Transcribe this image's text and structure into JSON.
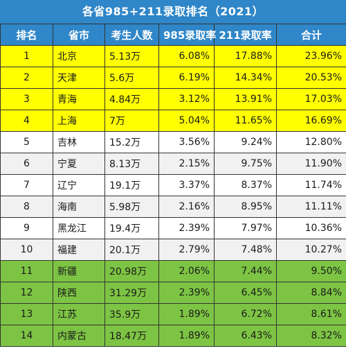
{
  "title": "各省985+211录取排名（2021）",
  "columns": [
    "排名",
    "省市",
    "考生人数",
    "985录取率",
    "211录取率",
    "合计"
  ],
  "rows": [
    {
      "rank": "1",
      "province": "北京",
      "count": "5.13万",
      "r985": "6.08%",
      "r211": "17.88%",
      "total": "23.96%",
      "tier": "yellow"
    },
    {
      "rank": "2",
      "province": "天津",
      "count": "5.6万",
      "r985": "6.19%",
      "r211": "14.34%",
      "total": "20.53%",
      "tier": "yellow"
    },
    {
      "rank": "3",
      "province": "青海",
      "count": "4.84万",
      "r985": "3.12%",
      "r211": "13.91%",
      "total": "17.03%",
      "tier": "yellow"
    },
    {
      "rank": "4",
      "province": "上海",
      "count": "7万",
      "r985": "5.04%",
      "r211": "11.65%",
      "total": "16.69%",
      "tier": "yellow"
    },
    {
      "rank": "5",
      "province": "吉林",
      "count": "15.2万",
      "r985": "3.56%",
      "r211": "9.24%",
      "total": "12.80%",
      "tier": "white"
    },
    {
      "rank": "6",
      "province": "宁夏",
      "count": "8.13万",
      "r985": "2.15%",
      "r211": "9.75%",
      "total": "11.90%",
      "tier": "white"
    },
    {
      "rank": "7",
      "province": "辽宁",
      "count": "19.1万",
      "r985": "3.37%",
      "r211": "8.37%",
      "total": "11.74%",
      "tier": "white"
    },
    {
      "rank": "8",
      "province": "海南",
      "count": "5.98万",
      "r985": "2.16%",
      "r211": "8.95%",
      "total": "11.11%",
      "tier": "white"
    },
    {
      "rank": "9",
      "province": "黑龙江",
      "count": "19.4万",
      "r985": "2.39%",
      "r211": "7.97%",
      "total": "10.36%",
      "tier": "white"
    },
    {
      "rank": "10",
      "province": "福建",
      "count": "20.1万",
      "r985": "2.79%",
      "r211": "7.48%",
      "total": "10.27%",
      "tier": "white"
    },
    {
      "rank": "11",
      "province": "新疆",
      "count": "20.98万",
      "r985": "2.06%",
      "r211": "7.44%",
      "total": "9.50%",
      "tier": "green"
    },
    {
      "rank": "12",
      "province": "陕西",
      "count": "31.29万",
      "r985": "2.39%",
      "r211": "6.45%",
      "total": "8.84%",
      "tier": "green"
    },
    {
      "rank": "13",
      "province": "江苏",
      "count": "35.9万",
      "r985": "1.89%",
      "r211": "6.72%",
      "total": "8.61%",
      "tier": "green"
    },
    {
      "rank": "14",
      "province": "内蒙古",
      "count": "18.47万",
      "r985": "1.89%",
      "r211": "6.43%",
      "total": "8.32%",
      "tier": "green"
    }
  ],
  "colors": {
    "header": "#2f86c8",
    "yellow": "#ffff00",
    "white": "#ffffff",
    "green": "#7dc444"
  }
}
